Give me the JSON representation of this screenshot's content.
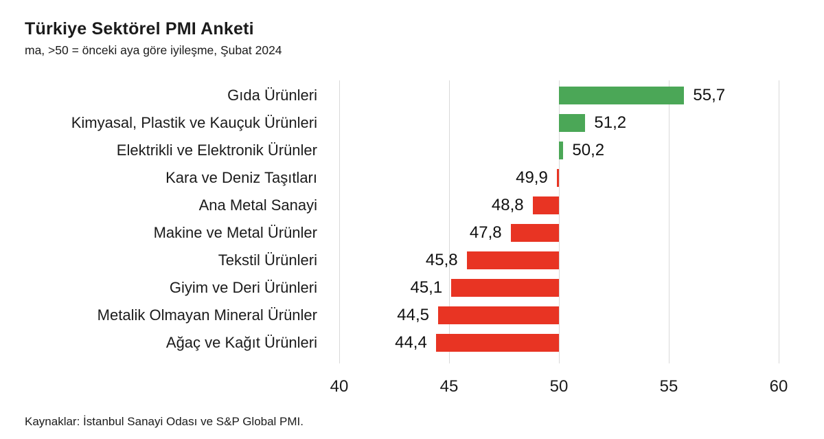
{
  "source": {
    "text": "Kaynaklar: İstanbul Sanayi Odası ve S&P Global PMI."
  },
  "chart_data": {
    "type": "bar",
    "orientation": "horizontal",
    "title": "Türkiye Sektörel PMI Anketi",
    "subtitle": "ma, >50 = önceki aya göre iyileşme, Şubat 2024",
    "baseline": 50,
    "xlim": [
      40,
      60
    ],
    "xticks": [
      40,
      45,
      50,
      55,
      60
    ],
    "grid": "vertical-gridlines-only",
    "legend": "none",
    "categories": [
      "Gıda Ürünleri",
      "Kimyasal, Plastik ve Kauçuk Ürünleri",
      "Elektrikli ve Elektronik Ürünler",
      "Kara ve Deniz Taşıtları",
      "Ana Metal Sanayi",
      "Makine ve Metal Ürünler",
      "Tekstil Ürünleri",
      "Giyim ve Deri Ürünleri",
      "Metalik Olmayan Mineral Ürünler",
      "Ağaç ve Kağıt Ürünleri"
    ],
    "values": [
      55.7,
      51.2,
      50.2,
      49.9,
      48.8,
      47.8,
      45.8,
      45.1,
      44.5,
      44.4
    ],
    "value_labels": [
      "55,7",
      "51,2",
      "50,2",
      "49,9",
      "48,8",
      "47,8",
      "45,8",
      "45,1",
      "44,5",
      "44,4"
    ],
    "colors": {
      "above_baseline": "#4ba757",
      "below_baseline": "#e83423",
      "gridline": "#d9d9d9",
      "text": "#1b1b1b"
    }
  }
}
